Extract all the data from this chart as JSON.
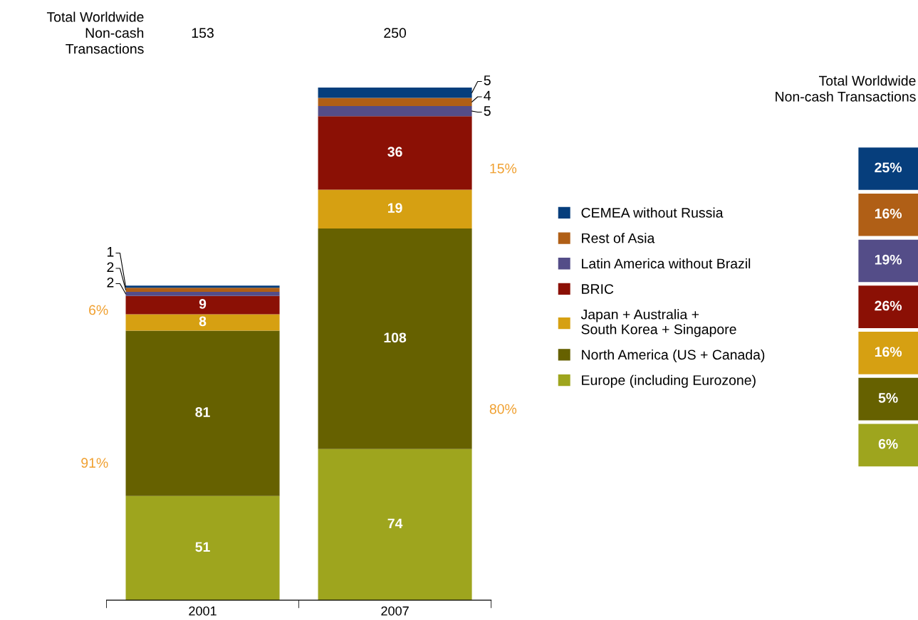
{
  "chart_data": [
    {
      "type": "bar",
      "stacked": true,
      "categories": [
        "2001",
        "2007"
      ],
      "series": [
        {
          "name": "Europe (including Eurozone)",
          "color": "#9ea51e",
          "values": [
            51,
            74
          ]
        },
        {
          "name": "North America (US + Canada)",
          "color": "#666100",
          "values": [
            81,
            108
          ]
        },
        {
          "name": "Japan + Australia +\nSouth Korea + Singapore",
          "color": "#d6a012",
          "values": [
            8,
            19
          ]
        },
        {
          "name": "BRIC",
          "color": "#8b1005",
          "values": [
            9,
            36
          ]
        },
        {
          "name": "Latin America without Brazil",
          "color": "#544d88",
          "values": [
            2,
            5
          ]
        },
        {
          "name": "Rest of Asia",
          "color": "#b05f16",
          "values": [
            2,
            4
          ]
        },
        {
          "name": "CEMEA without Russia",
          "color": "#063e7c",
          "values": [
            1,
            5
          ]
        }
      ],
      "data_labels": true,
      "legend": "right",
      "grid": false,
      "annotations": [
        "Total Worldwide\nNon-cash\nTransactions",
        "153",
        "250",
        "6%",
        "91%",
        "15%",
        "80%"
      ]
    },
    {
      "type": "other",
      "title": "Total Worldwide\nNon-cash Transactions",
      "value_labels": [
        "25%",
        "16%",
        "19%",
        "26%",
        "16%",
        "5%",
        "6%"
      ],
      "colors": [
        "#063e7c",
        "#b05f16",
        "#544d88",
        "#8b1005",
        "#d6a012",
        "#666100",
        "#9ea51e"
      ]
    }
  ]
}
